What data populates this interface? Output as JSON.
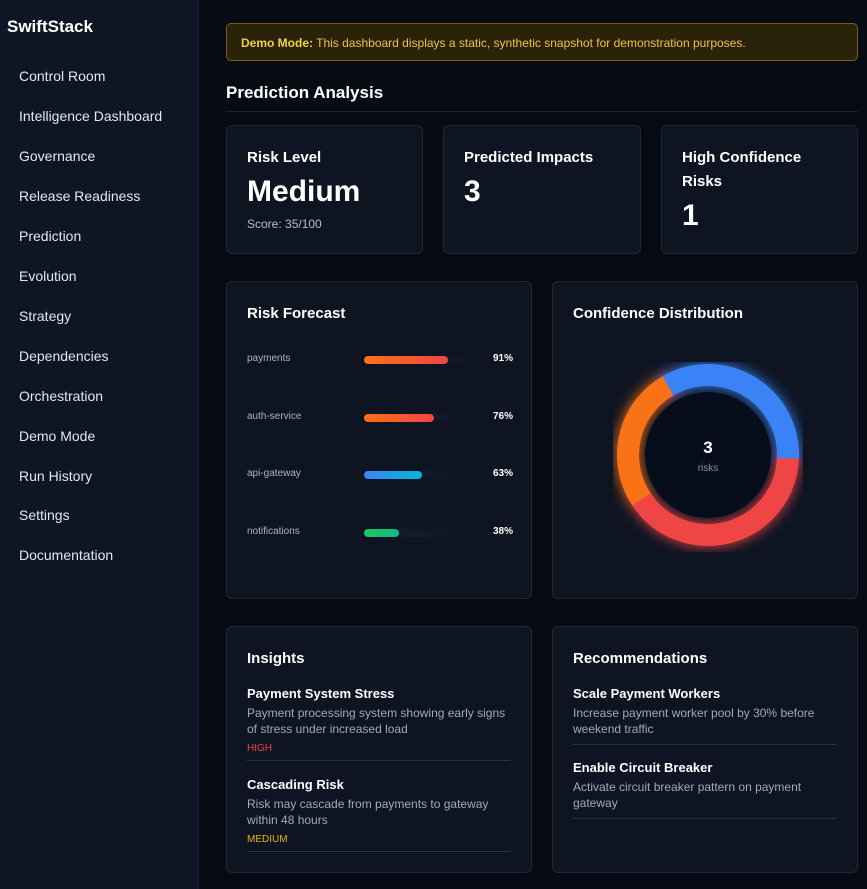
{
  "app": {
    "brand": "SwiftStack"
  },
  "sidebar": {
    "items": [
      {
        "label": "Control Room"
      },
      {
        "label": "Intelligence Dashboard"
      },
      {
        "label": "Governance"
      },
      {
        "label": "Release Readiness"
      },
      {
        "label": "Prediction"
      },
      {
        "label": "Evolution"
      },
      {
        "label": "Strategy"
      },
      {
        "label": "Dependencies"
      },
      {
        "label": "Orchestration"
      },
      {
        "label": "Demo Mode"
      },
      {
        "label": "Run History"
      },
      {
        "label": "Settings"
      },
      {
        "label": "Documentation"
      }
    ]
  },
  "banner": {
    "strong": "Demo Mode:",
    "text": "This dashboard displays a static, synthetic snapshot for demonstration purposes."
  },
  "page": {
    "title": "Prediction Analysis"
  },
  "stats": {
    "risk_level": {
      "title": "Risk Level",
      "value": "Medium",
      "score": "Score: 35/100"
    },
    "predicted_impacts": {
      "title": "Predicted Impacts",
      "value": "3"
    },
    "high_confidence": {
      "title": "High Confidence Risks",
      "value": "1"
    }
  },
  "forecast": {
    "title": "Risk Forecast",
    "rows": [
      {
        "label": "payments",
        "pct": "91%",
        "value": 0.91,
        "color_from": "#f97316",
        "color_to": "#ef4444"
      },
      {
        "label": "auth-service",
        "pct": "76%",
        "value": 0.76,
        "color_from": "#f97316",
        "color_to": "#ef4444"
      },
      {
        "label": "api-gateway",
        "pct": "63%",
        "value": 0.63,
        "color_from": "#3b82f6",
        "color_to": "#06b6d4"
      },
      {
        "label": "notifications",
        "pct": "38%",
        "value": 0.38,
        "color_from": "#22c55e",
        "color_to": "#10b981"
      }
    ]
  },
  "confidence": {
    "title": "Confidence Distribution",
    "count": "3",
    "unit": "risks",
    "segments": [
      {
        "value": 0.34,
        "color": "#3b82f6"
      },
      {
        "value": 0.4,
        "color": "#ef4444"
      },
      {
        "value": 0.26,
        "color": "#f97316"
      }
    ]
  },
  "insights": {
    "title": "Insights",
    "items": [
      {
        "title": "Payment System Stress",
        "desc": "Payment processing system showing early signs of stress under increased load",
        "severity": "HIGH",
        "severity_color": "#ef4444"
      },
      {
        "title": "Cascading Risk",
        "desc": "Risk may cascade from payments to gateway within 48 hours",
        "severity": "MEDIUM",
        "severity_color": "#eab308"
      }
    ]
  },
  "recommendations": {
    "title": "Recommendations",
    "items": [
      {
        "title": "Scale Payment Workers",
        "desc": "Increase payment worker pool by 30% before weekend traffic"
      },
      {
        "title": "Enable Circuit Breaker",
        "desc": "Activate circuit breaker pattern on payment gateway"
      }
    ]
  }
}
